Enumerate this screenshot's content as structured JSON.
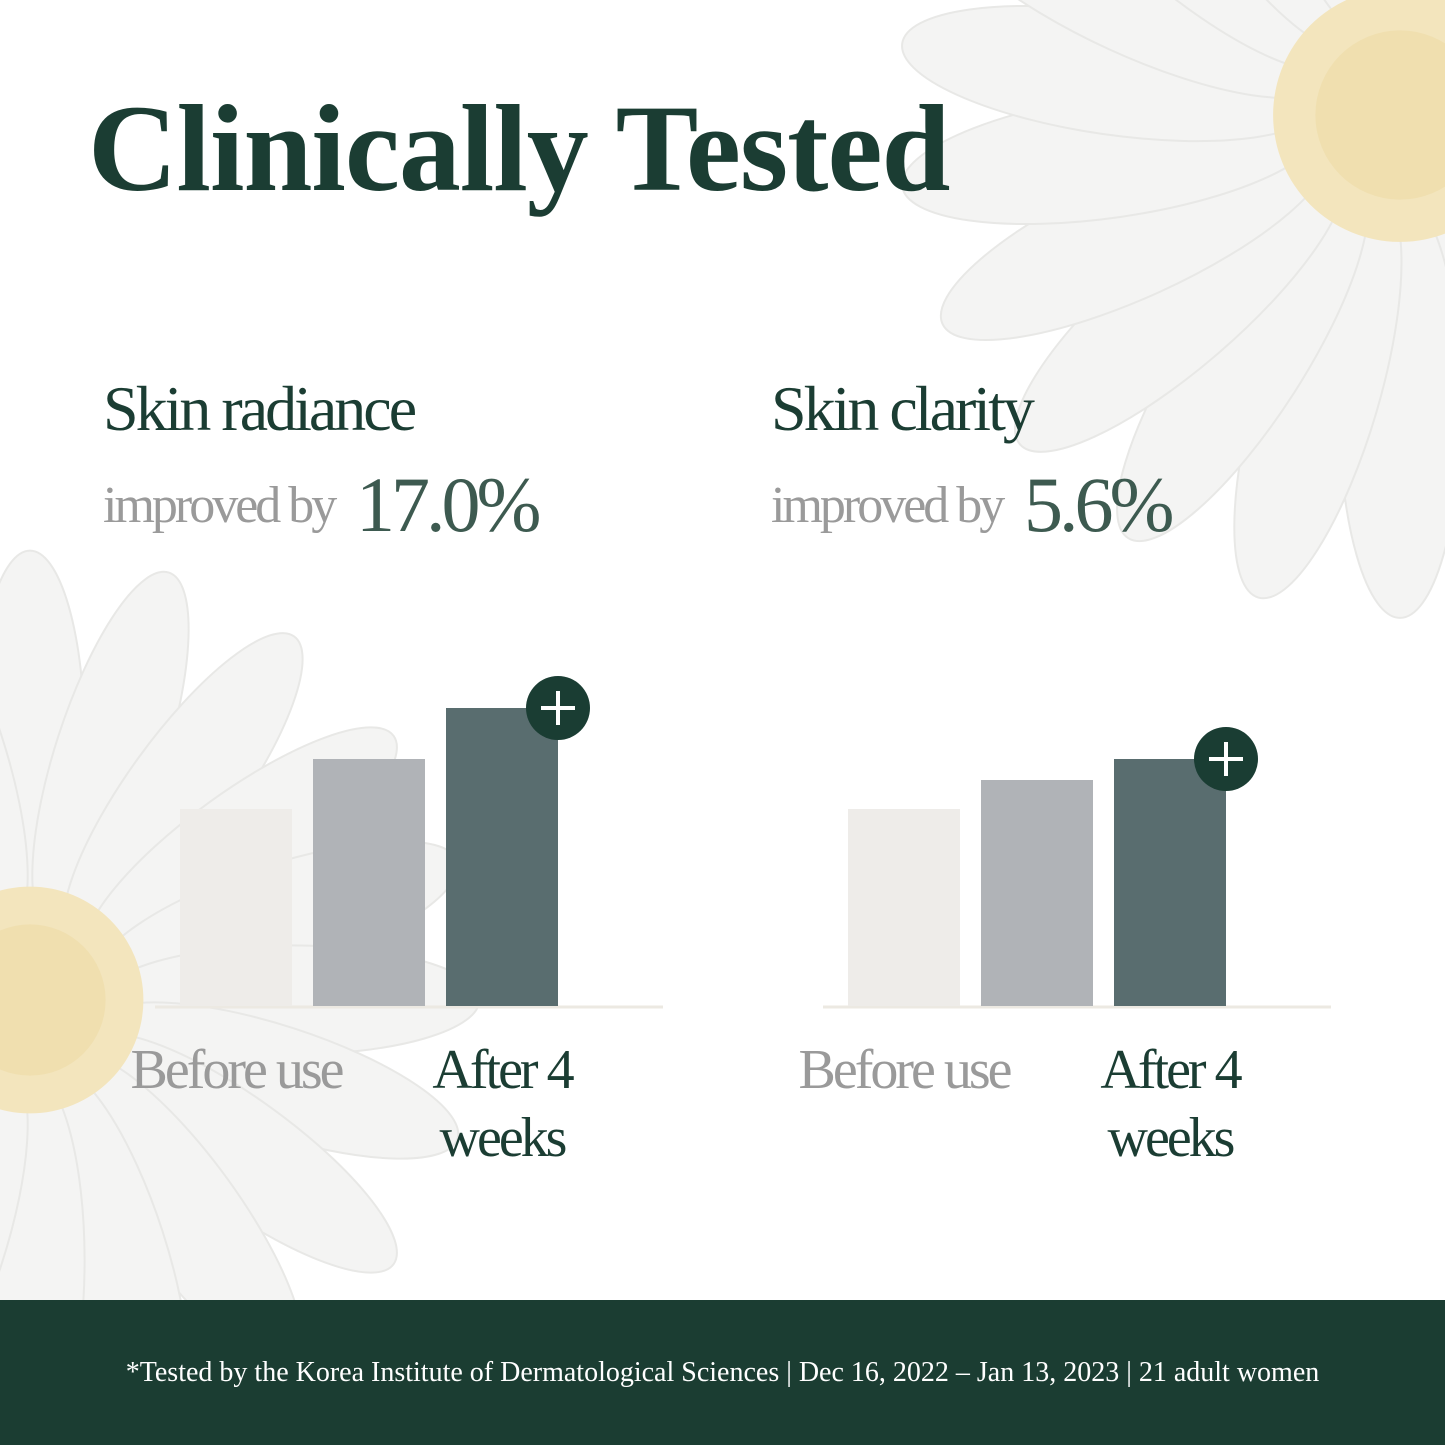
{
  "title": "Clinically Tested",
  "panels": [
    {
      "heading": "Skin radiance",
      "subheading": "improved by",
      "improvement": "17.0%",
      "chart": {
        "type": "bar",
        "categories": [
          "Before use",
          null,
          "After 4 weeks"
        ],
        "values": [
          197,
          247,
          298
        ],
        "colors": [
          "#eeece9",
          "#b0b3b7",
          "#596d6f"
        ]
      }
    },
    {
      "heading": "Skin clarity",
      "subheading": "improved by",
      "improvement": "5.6%",
      "chart": {
        "type": "bar",
        "categories": [
          "Before use",
          null,
          "After 4 weeks"
        ],
        "values": [
          197,
          226,
          247
        ],
        "colors": [
          "#eeece9",
          "#b0b3b7",
          "#596d6f"
        ]
      }
    }
  ],
  "footer": "*Tested by the Korea Institute of Dermatological Sciences | Dec 16, 2022 – Jan 13, 2023 | 21 adult women"
}
